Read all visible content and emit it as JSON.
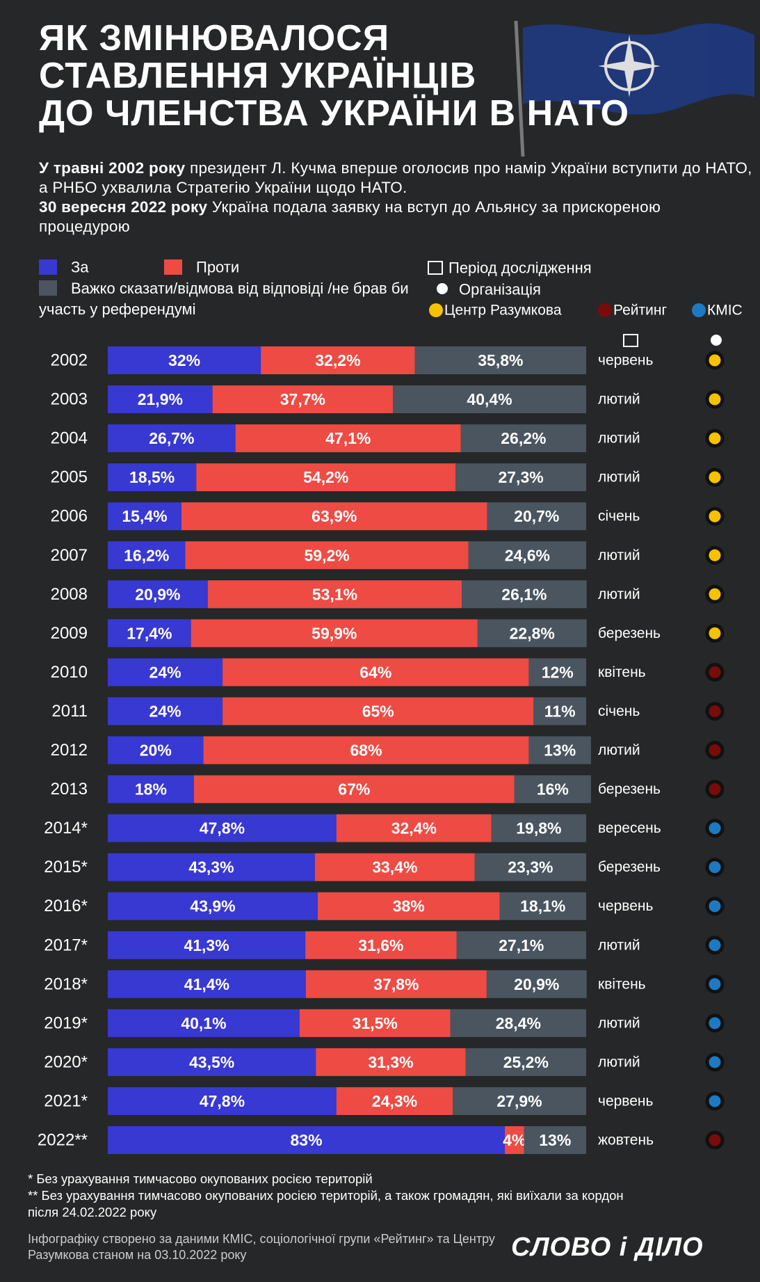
{
  "chart_data": {
    "type": "stacked_bar_horizontal",
    "title": [
      "ЯК ЗМІНЮВАЛОСЯ",
      "СТАВЛЕННЯ УКРАЇНЦІВ",
      "ДО ЧЛЕНСТВА УКРАЇНИ В НАТО"
    ],
    "subtitle": [
      {
        "lead": "У травні 2002 року",
        "text": "президент Л. Кучма вперше оголосив про намір України вступити до НАТО, а РНБО ухвалила Стратегію України щодо НАТО."
      },
      {
        "lead": "30 вересня 2022 року",
        "text": "Україна подала заявку на вступ до Альянсу за прискореною процедурою"
      }
    ],
    "categories": [
      "2002",
      "2003",
      "2004",
      "2005",
      "2006",
      "2007",
      "2008",
      "2009",
      "2010",
      "2011",
      "2012",
      "2013",
      "2014*",
      "2015*",
      "2016*",
      "2017*",
      "2018*",
      "2019*",
      "2020*",
      "2021*",
      "2022**"
    ],
    "xlim": [
      0,
      100
    ],
    "series": [
      {
        "name": "За",
        "color": "#3838d2",
        "values": [
          32,
          21.9,
          26.7,
          18.5,
          15.4,
          16.2,
          20.9,
          17.4,
          24,
          24,
          20,
          18,
          47.8,
          43.3,
          43.9,
          41.3,
          41.4,
          40.1,
          43.5,
          47.8,
          83
        ],
        "value_labels": [
          "32%",
          "21,9%",
          "26,7%",
          "18,5%",
          "15,4%",
          "16,2%",
          "20,9%",
          "17,4%",
          "24%",
          "24%",
          "20%",
          "18%",
          "47,8%",
          "43,3%",
          "43,9%",
          "41,3%",
          "41,4%",
          "40,1%",
          "43,5%",
          "47,8%",
          "83%"
        ]
      },
      {
        "name": "Проти",
        "color": "#ee4b44",
        "values": [
          32.2,
          37.7,
          47.1,
          54.2,
          63.9,
          59.2,
          53.1,
          59.9,
          64,
          65,
          68,
          67,
          32.4,
          33.4,
          38,
          31.6,
          37.8,
          31.5,
          31.3,
          24.3,
          4
        ],
        "value_labels": [
          "32,2%",
          "37,7%",
          "47,1%",
          "54,2%",
          "63,9%",
          "59,2%",
          "53,1%",
          "59,9%",
          "64%",
          "65%",
          "68%",
          "67%",
          "32,4%",
          "33,4%",
          "38%",
          "31,6%",
          "37,8%",
          "31,5%",
          "31,3%",
          "24,3%",
          "4%"
        ]
      },
      {
        "name": "Важко сказати/відмова від відповіді /не брав би участь у референдумі",
        "color": "#4a5560",
        "values": [
          35.8,
          40.4,
          26.2,
          27.3,
          20.7,
          24.6,
          26.1,
          22.8,
          12,
          11,
          13,
          16,
          19.8,
          23.3,
          18.1,
          27.1,
          20.9,
          28.4,
          25.2,
          27.9,
          13
        ],
        "value_labels": [
          "35,8%",
          "40,4%",
          "26,2%",
          "27,3%",
          "20,7%",
          "24,6%",
          "26,1%",
          "22,8%",
          "12%",
          "11%",
          "13%",
          "16%",
          "19,8%",
          "23,3%",
          "18,1%",
          "27,1%",
          "20,9%",
          "28,4%",
          "25,2%",
          "27,9%",
          "13%"
        ]
      }
    ],
    "period_label": "Період дослідження",
    "organization_label": "Організація",
    "organizations": [
      {
        "name": "Центр Разумкова",
        "color": "#f6c200"
      },
      {
        "name": "Рейтинг",
        "color": "#7a0b0b"
      },
      {
        "name": "КМІС",
        "color": "#1d7ac2"
      }
    ],
    "months": [
      "червень",
      "лютий",
      "лютий",
      "лютий",
      "січень",
      "лютий",
      "лютий",
      "березень",
      "квітень",
      "січень",
      "лютий",
      "березень",
      "вересень",
      "березень",
      "червень",
      "лютий",
      "квітень",
      "лютий",
      "лютий",
      "червень",
      "жовтень"
    ],
    "row_organizations": [
      "Центр Разумкова",
      "Центр Разумкова",
      "Центр Разумкова",
      "Центр Разумкова",
      "Центр Разумкова",
      "Центр Разумкова",
      "Центр Разумкова",
      "Центр Разумкова",
      "Рейтинг",
      "Рейтинг",
      "Рейтинг",
      "Рейтинг",
      "КМІС",
      "КМІС",
      "КМІС",
      "КМІС",
      "КМІС",
      "КМІС",
      "КМІС",
      "КМІС",
      "Рейтинг"
    ],
    "footnotes": [
      "* Без урахування тимчасово окупованих росією територій",
      "** Без урахування тимчасово окупованих росією територій, а також громадян, які виїхали за кордон після 24.02.2022 року"
    ],
    "source": "Інфографіку створено за даними КМІС, соціологічної групи «Рейтинг» та Центру Разумкова станом на 03.10.2022 року",
    "logo": "СЛОВО і ДІЛО"
  }
}
